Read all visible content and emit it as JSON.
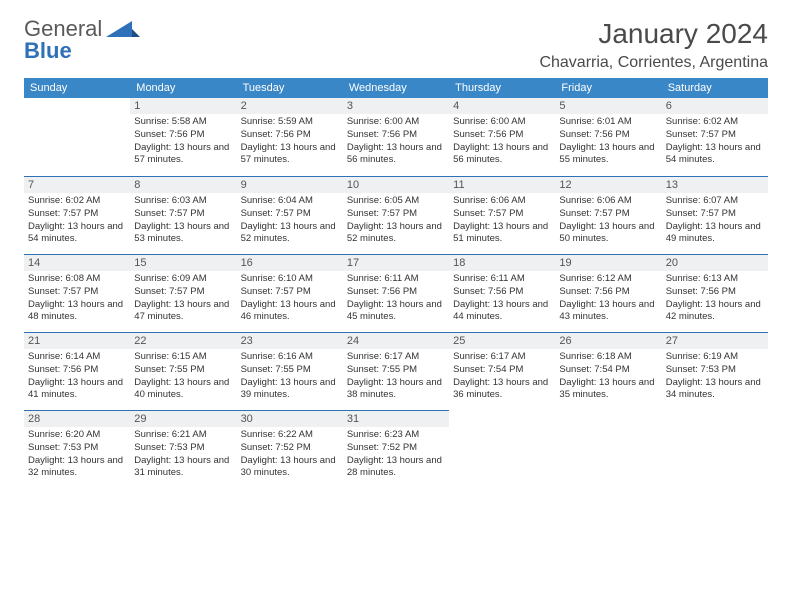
{
  "logo": {
    "word1": "General",
    "word2": "Blue"
  },
  "title": "January 2024",
  "location": "Chavarria, Corrientes, Argentina",
  "colors": {
    "header_bg": "#3a87c8",
    "band_bg": "#eef0f1",
    "rule": "#2f71b8",
    "logo_gray": "#5a5a5a",
    "logo_blue": "#2f71b8",
    "text": "#333333"
  },
  "fonts": {
    "title_size": 28,
    "location_size": 16,
    "dow_size": 11,
    "daynum_size": 11,
    "info_size": 9.5
  },
  "dow": [
    "Sunday",
    "Monday",
    "Tuesday",
    "Wednesday",
    "Thursday",
    "Friday",
    "Saturday"
  ],
  "weeks": [
    [
      {
        "n": "",
        "sr": "",
        "ss": "",
        "dl": ""
      },
      {
        "n": "1",
        "sr": "Sunrise: 5:58 AM",
        "ss": "Sunset: 7:56 PM",
        "dl": "Daylight: 13 hours and 57 minutes."
      },
      {
        "n": "2",
        "sr": "Sunrise: 5:59 AM",
        "ss": "Sunset: 7:56 PM",
        "dl": "Daylight: 13 hours and 57 minutes."
      },
      {
        "n": "3",
        "sr": "Sunrise: 6:00 AM",
        "ss": "Sunset: 7:56 PM",
        "dl": "Daylight: 13 hours and 56 minutes."
      },
      {
        "n": "4",
        "sr": "Sunrise: 6:00 AM",
        "ss": "Sunset: 7:56 PM",
        "dl": "Daylight: 13 hours and 56 minutes."
      },
      {
        "n": "5",
        "sr": "Sunrise: 6:01 AM",
        "ss": "Sunset: 7:56 PM",
        "dl": "Daylight: 13 hours and 55 minutes."
      },
      {
        "n": "6",
        "sr": "Sunrise: 6:02 AM",
        "ss": "Sunset: 7:57 PM",
        "dl": "Daylight: 13 hours and 54 minutes."
      }
    ],
    [
      {
        "n": "7",
        "sr": "Sunrise: 6:02 AM",
        "ss": "Sunset: 7:57 PM",
        "dl": "Daylight: 13 hours and 54 minutes."
      },
      {
        "n": "8",
        "sr": "Sunrise: 6:03 AM",
        "ss": "Sunset: 7:57 PM",
        "dl": "Daylight: 13 hours and 53 minutes."
      },
      {
        "n": "9",
        "sr": "Sunrise: 6:04 AM",
        "ss": "Sunset: 7:57 PM",
        "dl": "Daylight: 13 hours and 52 minutes."
      },
      {
        "n": "10",
        "sr": "Sunrise: 6:05 AM",
        "ss": "Sunset: 7:57 PM",
        "dl": "Daylight: 13 hours and 52 minutes."
      },
      {
        "n": "11",
        "sr": "Sunrise: 6:06 AM",
        "ss": "Sunset: 7:57 PM",
        "dl": "Daylight: 13 hours and 51 minutes."
      },
      {
        "n": "12",
        "sr": "Sunrise: 6:06 AM",
        "ss": "Sunset: 7:57 PM",
        "dl": "Daylight: 13 hours and 50 minutes."
      },
      {
        "n": "13",
        "sr": "Sunrise: 6:07 AM",
        "ss": "Sunset: 7:57 PM",
        "dl": "Daylight: 13 hours and 49 minutes."
      }
    ],
    [
      {
        "n": "14",
        "sr": "Sunrise: 6:08 AM",
        "ss": "Sunset: 7:57 PM",
        "dl": "Daylight: 13 hours and 48 minutes."
      },
      {
        "n": "15",
        "sr": "Sunrise: 6:09 AM",
        "ss": "Sunset: 7:57 PM",
        "dl": "Daylight: 13 hours and 47 minutes."
      },
      {
        "n": "16",
        "sr": "Sunrise: 6:10 AM",
        "ss": "Sunset: 7:57 PM",
        "dl": "Daylight: 13 hours and 46 minutes."
      },
      {
        "n": "17",
        "sr": "Sunrise: 6:11 AM",
        "ss": "Sunset: 7:56 PM",
        "dl": "Daylight: 13 hours and 45 minutes."
      },
      {
        "n": "18",
        "sr": "Sunrise: 6:11 AM",
        "ss": "Sunset: 7:56 PM",
        "dl": "Daylight: 13 hours and 44 minutes."
      },
      {
        "n": "19",
        "sr": "Sunrise: 6:12 AM",
        "ss": "Sunset: 7:56 PM",
        "dl": "Daylight: 13 hours and 43 minutes."
      },
      {
        "n": "20",
        "sr": "Sunrise: 6:13 AM",
        "ss": "Sunset: 7:56 PM",
        "dl": "Daylight: 13 hours and 42 minutes."
      }
    ],
    [
      {
        "n": "21",
        "sr": "Sunrise: 6:14 AM",
        "ss": "Sunset: 7:56 PM",
        "dl": "Daylight: 13 hours and 41 minutes."
      },
      {
        "n": "22",
        "sr": "Sunrise: 6:15 AM",
        "ss": "Sunset: 7:55 PM",
        "dl": "Daylight: 13 hours and 40 minutes."
      },
      {
        "n": "23",
        "sr": "Sunrise: 6:16 AM",
        "ss": "Sunset: 7:55 PM",
        "dl": "Daylight: 13 hours and 39 minutes."
      },
      {
        "n": "24",
        "sr": "Sunrise: 6:17 AM",
        "ss": "Sunset: 7:55 PM",
        "dl": "Daylight: 13 hours and 38 minutes."
      },
      {
        "n": "25",
        "sr": "Sunrise: 6:17 AM",
        "ss": "Sunset: 7:54 PM",
        "dl": "Daylight: 13 hours and 36 minutes."
      },
      {
        "n": "26",
        "sr": "Sunrise: 6:18 AM",
        "ss": "Sunset: 7:54 PM",
        "dl": "Daylight: 13 hours and 35 minutes."
      },
      {
        "n": "27",
        "sr": "Sunrise: 6:19 AM",
        "ss": "Sunset: 7:53 PM",
        "dl": "Daylight: 13 hours and 34 minutes."
      }
    ],
    [
      {
        "n": "28",
        "sr": "Sunrise: 6:20 AM",
        "ss": "Sunset: 7:53 PM",
        "dl": "Daylight: 13 hours and 32 minutes."
      },
      {
        "n": "29",
        "sr": "Sunrise: 6:21 AM",
        "ss": "Sunset: 7:53 PM",
        "dl": "Daylight: 13 hours and 31 minutes."
      },
      {
        "n": "30",
        "sr": "Sunrise: 6:22 AM",
        "ss": "Sunset: 7:52 PM",
        "dl": "Daylight: 13 hours and 30 minutes."
      },
      {
        "n": "31",
        "sr": "Sunrise: 6:23 AM",
        "ss": "Sunset: 7:52 PM",
        "dl": "Daylight: 13 hours and 28 minutes."
      },
      {
        "n": "",
        "sr": "",
        "ss": "",
        "dl": ""
      },
      {
        "n": "",
        "sr": "",
        "ss": "",
        "dl": ""
      },
      {
        "n": "",
        "sr": "",
        "ss": "",
        "dl": ""
      }
    ]
  ]
}
